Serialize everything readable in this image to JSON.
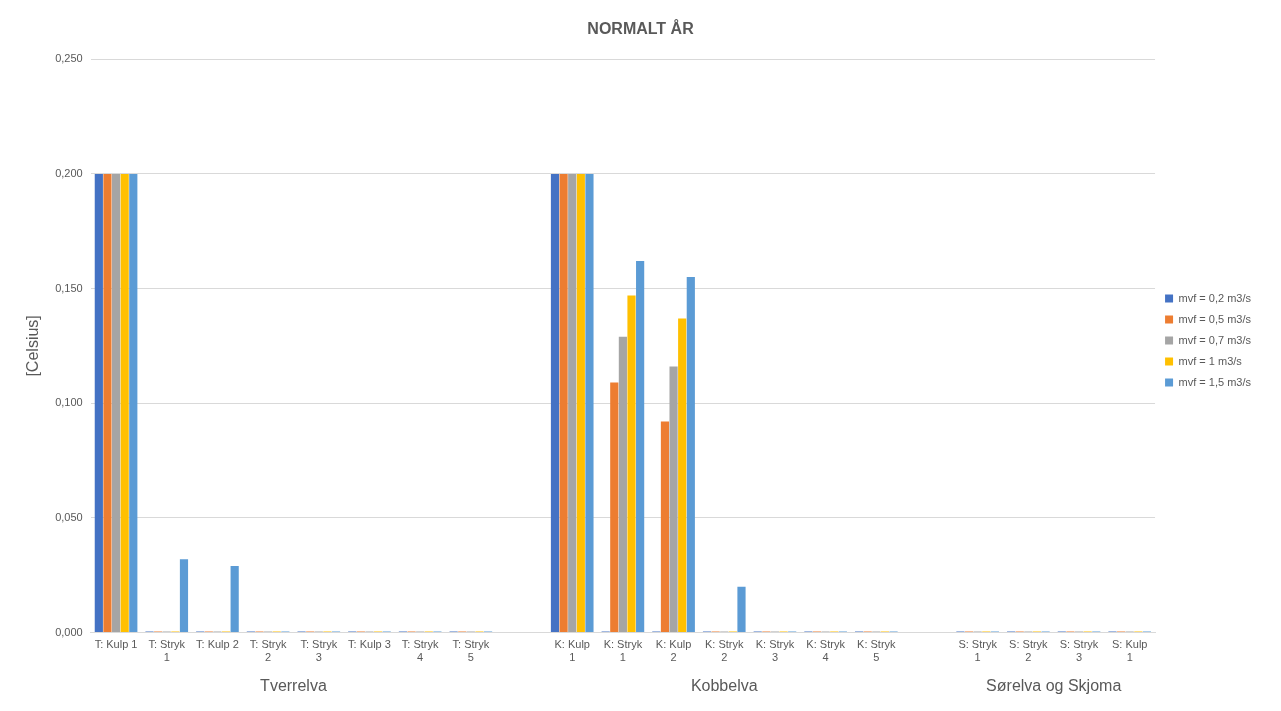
{
  "chart_data": {
    "type": "bar",
    "title": "NORMALT ÅR",
    "ylabel": "[Celsius]",
    "categories": [
      "T: Kulp 1",
      "T: Stryk 1",
      "T: Kulp 2",
      "T: Stryk 2",
      "T: Stryk 3",
      "T: Kulp 3",
      "T: Stryk 4",
      "T: Stryk 5",
      null,
      "K: Kulp 1",
      "K: Stryk 1",
      "K: Kulp 2",
      "K: Stryk 2",
      "K: Stryk 3",
      "K: Stryk 4",
      "K: Stryk 5",
      null,
      "S: Stryk 1",
      "S: Stryk 2",
      "S: Stryk 3",
      "S: Kulp 1"
    ],
    "series": [
      {
        "name": "mvf = 0,2 m3/s",
        "color": "#4472c4",
        "values": [
          0.2,
          0,
          0,
          0,
          0,
          0,
          0,
          0,
          null,
          0.2,
          0,
          0,
          0,
          0,
          0,
          0,
          null,
          0,
          0,
          0,
          0
        ]
      },
      {
        "name": "mvf = 0,5 m3/s",
        "color": "#ed7d31",
        "values": [
          0.2,
          0,
          0,
          0,
          0,
          0,
          0,
          0,
          null,
          0.2,
          0.109,
          0.092,
          0,
          0,
          0,
          0,
          null,
          0,
          0,
          0,
          0
        ]
      },
      {
        "name": "mvf = 0,7 m3/s",
        "color": "#a5a5a5",
        "values": [
          0.2,
          0,
          0,
          0,
          0,
          0,
          0,
          0,
          null,
          0.2,
          0.129,
          0.116,
          0,
          0,
          0,
          0,
          null,
          0,
          0,
          0,
          0
        ]
      },
      {
        "name": "mvf = 1 m3/s",
        "color": "#ffc000",
        "values": [
          0.2,
          0,
          0,
          0,
          0,
          0,
          0,
          0,
          null,
          0.2,
          0.147,
          0.137,
          0,
          0,
          0,
          0,
          null,
          0,
          0,
          0,
          0
        ]
      },
      {
        "name": "mvf = 1,5 m3/s",
        "color": "#5b9bd5",
        "values": [
          0.2,
          0.032,
          0.029,
          0,
          0,
          0,
          0,
          0,
          null,
          0.2,
          0.162,
          0.155,
          0.02,
          0,
          0,
          0,
          null,
          0,
          0,
          0,
          0
        ]
      }
    ],
    "ylim": [
      0,
      0.25
    ],
    "yticks": [
      {
        "value": 0,
        "label": "0,000"
      },
      {
        "value": 0.05,
        "label": "0,050"
      },
      {
        "value": 0.1,
        "label": "0,100"
      },
      {
        "value": 0.15,
        "label": "0,150"
      },
      {
        "value": 0.2,
        "label": "0,200"
      },
      {
        "value": 0.25,
        "label": "0,250"
      }
    ],
    "grid": "y",
    "legend": "right",
    "annotations": [
      "Tverrelva",
      "Kobbelva",
      "Sørelva og Skjoma"
    ]
  }
}
